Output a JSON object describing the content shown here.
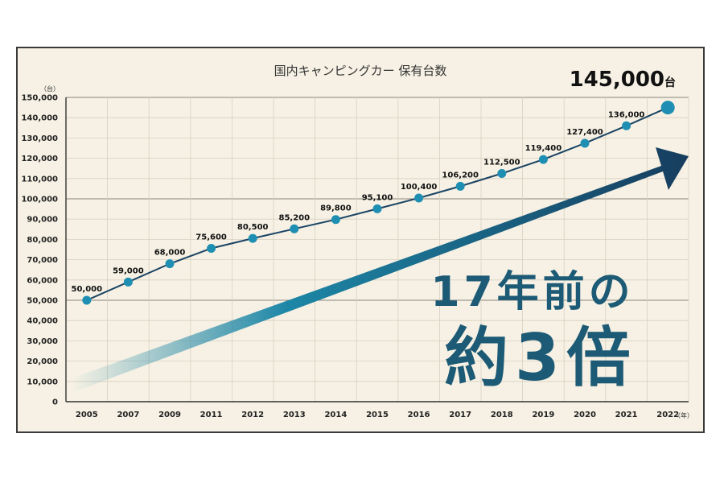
{
  "chart_data": {
    "type": "line",
    "title": "国内キャンピングカー 保有台数",
    "y_unit": "（台）",
    "x_unit": "（年）",
    "ylim": [
      0,
      150000
    ],
    "y_ticks": [
      "0",
      "10,000",
      "20,000",
      "30,000",
      "40,000",
      "50,000",
      "60,000",
      "70,000",
      "80,000",
      "90,000",
      "100,000",
      "110,000",
      "120,000",
      "130,000",
      "140,000",
      "150,000"
    ],
    "categories": [
      "2005",
      "2007",
      "2009",
      "2011",
      "2012",
      "2013",
      "2014",
      "2015",
      "2016",
      "2017",
      "2018",
      "2019",
      "2020",
      "2021",
      "2022"
    ],
    "values": [
      50000,
      59000,
      68000,
      75600,
      80500,
      85200,
      89800,
      95100,
      100400,
      106200,
      112500,
      119400,
      127400,
      136000,
      145000
    ],
    "data_labels": [
      "50,000",
      "59,000",
      "68,000",
      "75,600",
      "80,500",
      "85,200",
      "89,800",
      "95,100",
      "100,400",
      "106,200",
      "112,500",
      "119,400",
      "127,400",
      "136,000",
      ""
    ],
    "final_value_label": "145,000",
    "final_value_unit": "台",
    "grid": true,
    "colors": {
      "line": "#1a4464",
      "marker": "#1e8fb3",
      "arrow_dark": "#173d5e",
      "arrow_light": "#1d86a6",
      "callout": "#1d5a75"
    }
  },
  "callout": {
    "line1": "17年前の",
    "line2": "約3倍"
  }
}
